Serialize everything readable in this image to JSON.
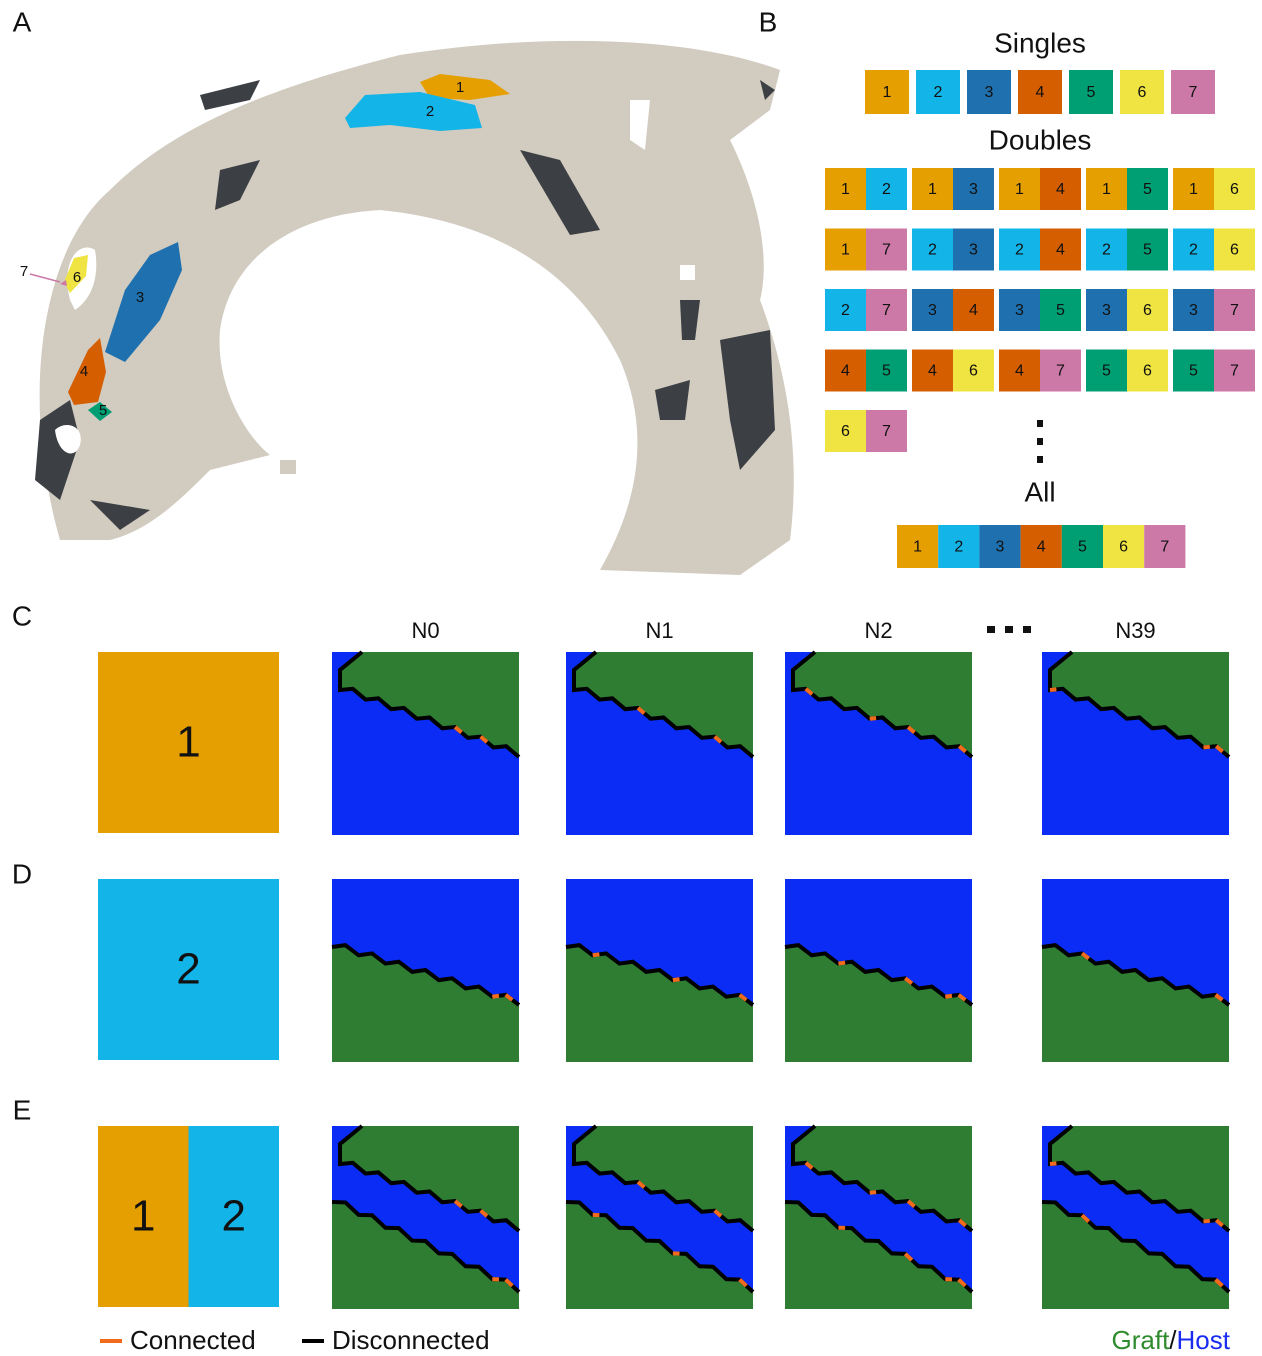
{
  "panel_labels": [
    "A",
    "B",
    "C",
    "D",
    "E"
  ],
  "regions": [
    {
      "label": "1",
      "color": "#e69f00"
    },
    {
      "label": "2",
      "color": "#13b4e8"
    },
    {
      "label": "3",
      "color": "#1f70ae"
    },
    {
      "label": "4",
      "color": "#d55e00"
    },
    {
      "label": "5",
      "color": "#009e73"
    },
    {
      "label": "6",
      "color": "#f0e442"
    },
    {
      "label": "7",
      "color": "#cc79a7"
    }
  ],
  "combinations": {
    "singles_title": "Singles",
    "singles": [
      "1",
      "2",
      "3",
      "4",
      "5",
      "6",
      "7"
    ],
    "doubles_title": "Doubles",
    "doubles": [
      [
        "1",
        "2"
      ],
      [
        "1",
        "3"
      ],
      [
        "1",
        "4"
      ],
      [
        "1",
        "5"
      ],
      [
        "1",
        "6"
      ],
      [
        "1",
        "7"
      ],
      [
        "2",
        "3"
      ],
      [
        "2",
        "4"
      ],
      [
        "2",
        "5"
      ],
      [
        "2",
        "6"
      ],
      [
        "2",
        "7"
      ],
      [
        "3",
        "4"
      ],
      [
        "3",
        "5"
      ],
      [
        "3",
        "6"
      ],
      [
        "3",
        "7"
      ],
      [
        "4",
        "5"
      ],
      [
        "4",
        "6"
      ],
      [
        "4",
        "7"
      ],
      [
        "5",
        "6"
      ],
      [
        "5",
        "7"
      ],
      [
        "6",
        "7"
      ]
    ],
    "all_title": "All",
    "all": [
      "1",
      "2",
      "3",
      "4",
      "5",
      "6",
      "7"
    ]
  },
  "networks": {
    "columns": [
      "N0",
      "N1",
      "N2",
      "N39"
    ],
    "rows": [
      {
        "cells": [
          "1"
        ]
      },
      {
        "cells": [
          "2"
        ]
      },
      {
        "cells": [
          "1",
          "2"
        ]
      }
    ]
  },
  "legend": {
    "connected": "Connected",
    "disconnected": "Disconnected",
    "graft": "Graft",
    "separator": "/",
    "host": "Host"
  }
}
